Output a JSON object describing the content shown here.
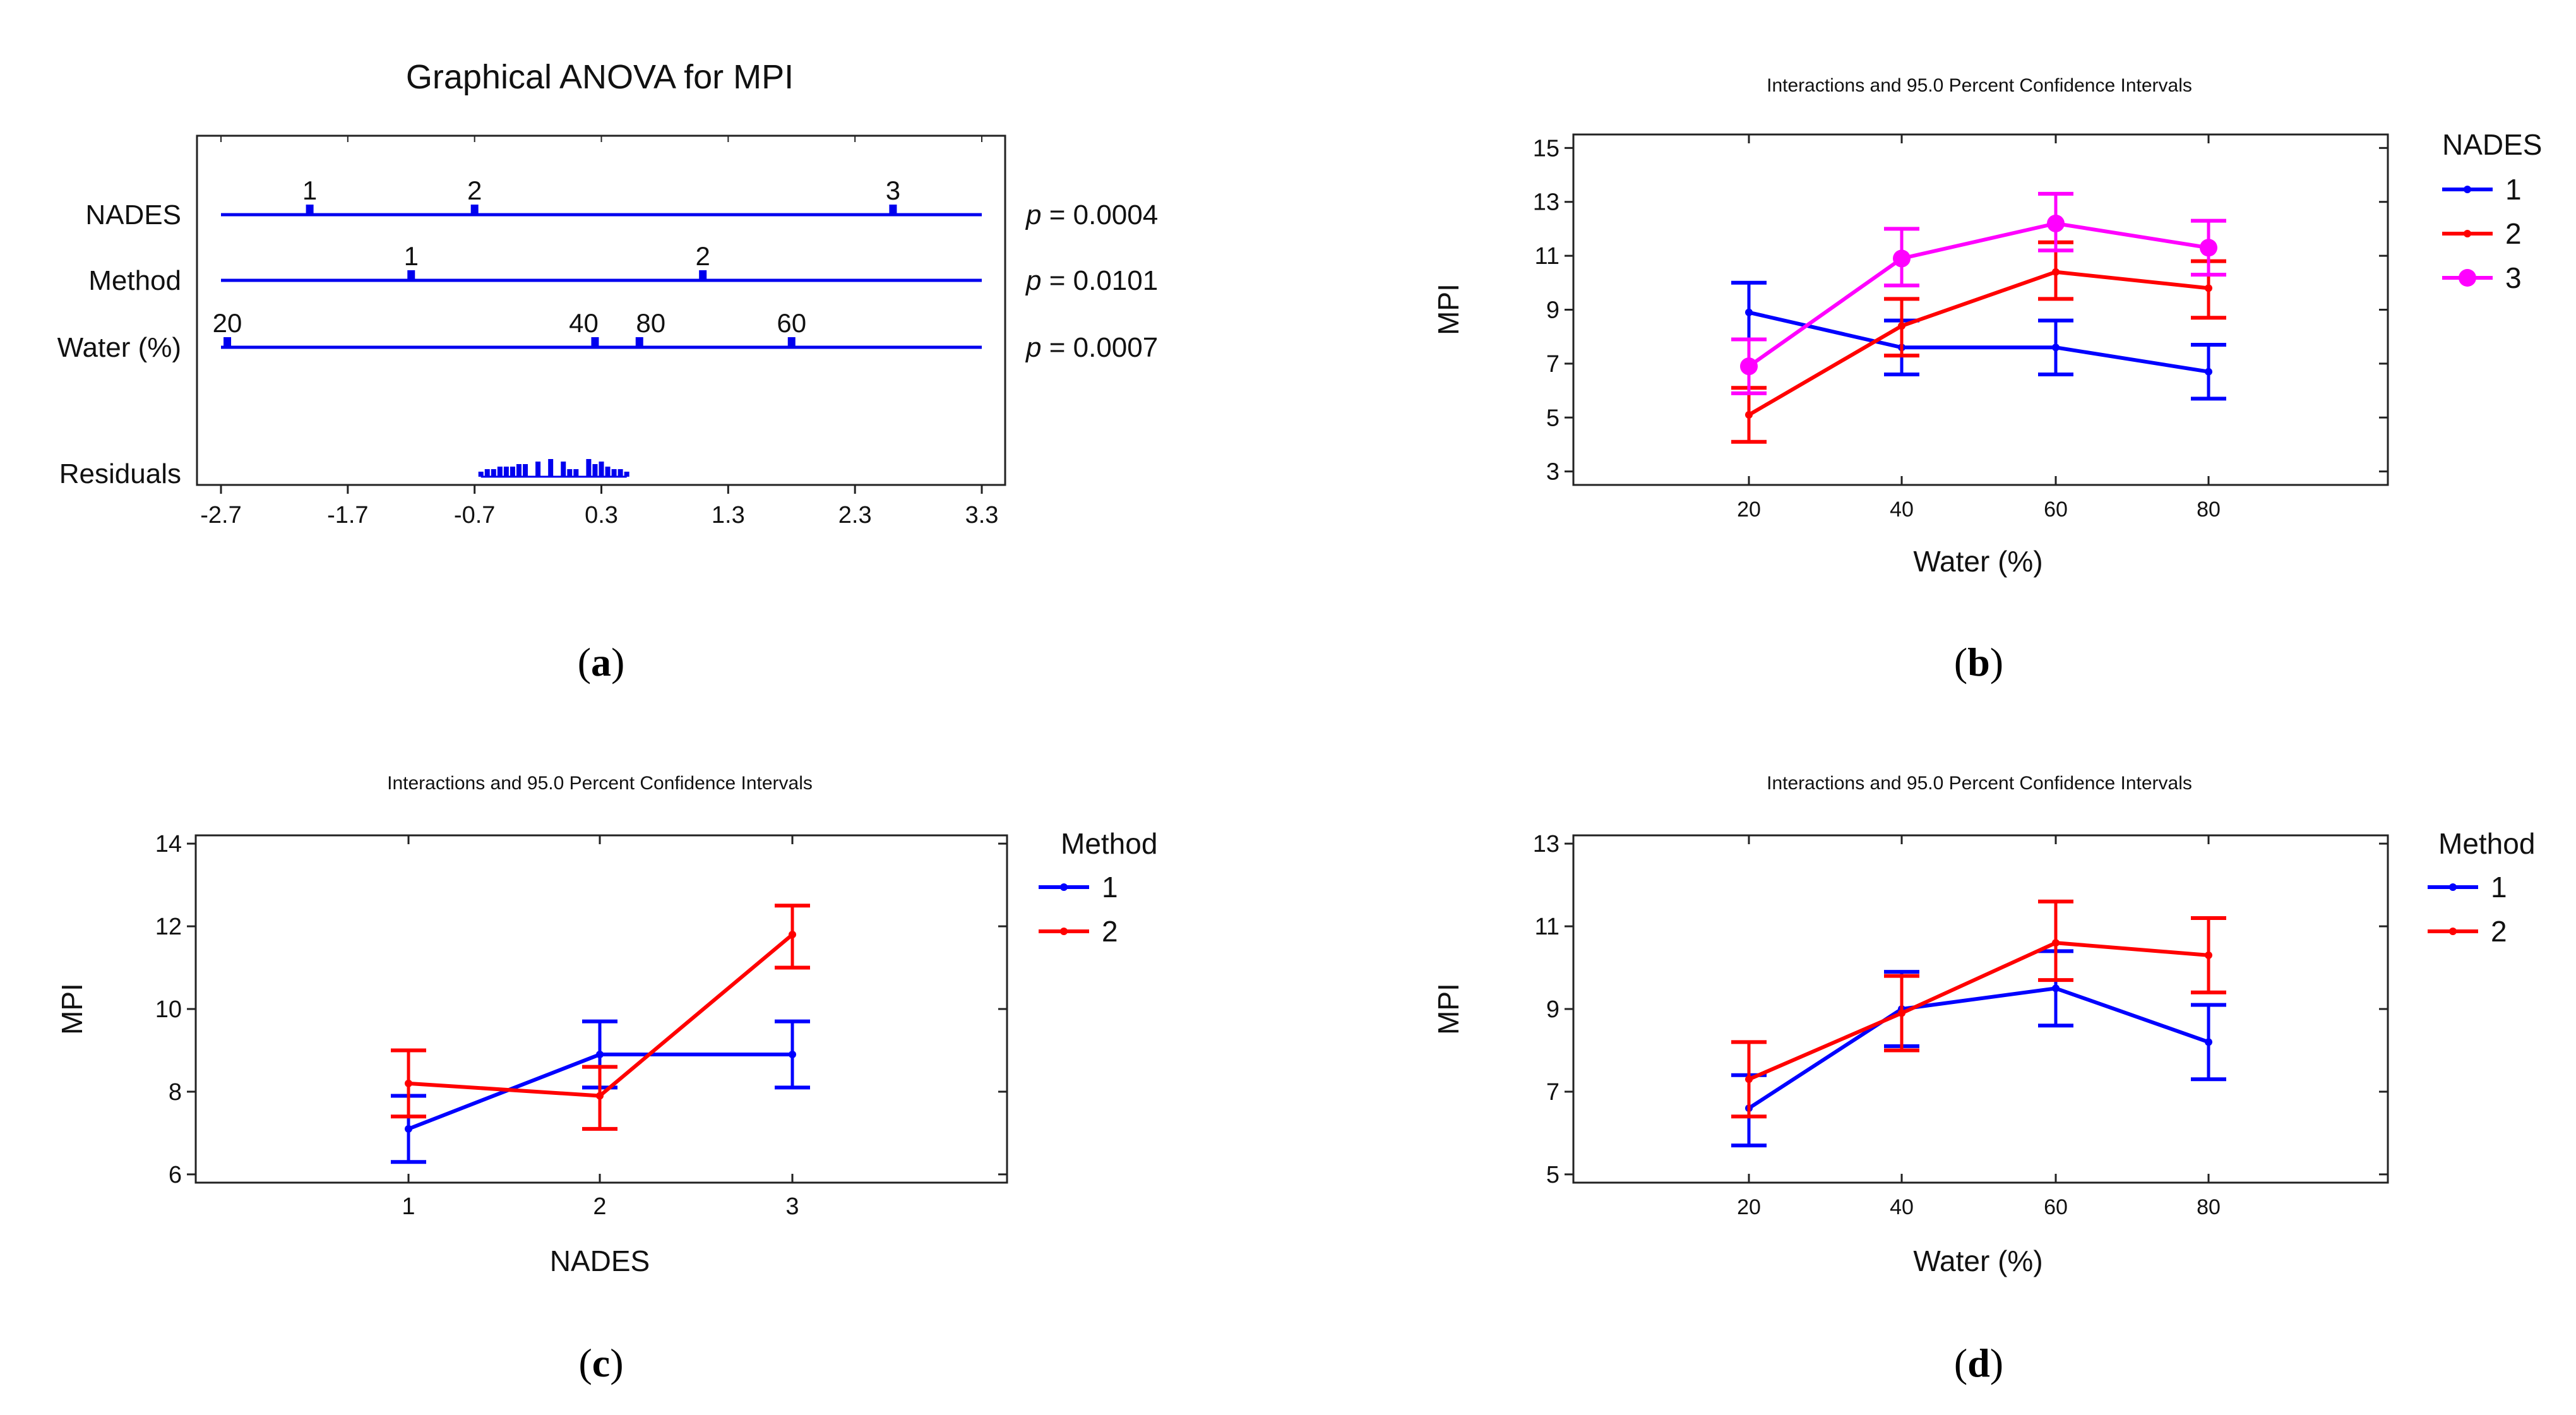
{
  "panels": {
    "a": {
      "title": "Graphical ANOVA for MPI",
      "caption": "a",
      "xticks": [
        "-2.7",
        "-1.7",
        "-0.7",
        "0.3",
        "1.3",
        "2.3",
        "3.3"
      ],
      "factors": [
        {
          "name": "NADES",
          "p_prefix": "p",
          "p_value": "= 0.0004",
          "levels": [
            {
              "label": "1",
              "effect": -2.0
            },
            {
              "label": "2",
              "effect": -0.7
            },
            {
              "label": "3",
              "effect": 2.6
            }
          ]
        },
        {
          "name": "Method",
          "p_prefix": "p",
          "p_value": "= 0.0101",
          "levels": [
            {
              "label": "1",
              "effect": -1.2
            },
            {
              "label": "2",
              "effect": 1.1
            }
          ]
        },
        {
          "name": "Water (%)",
          "p_prefix": "p",
          "p_value": "= 0.0007",
          "levels": [
            {
              "label": "20",
              "effect": -2.65
            },
            {
              "label": "40",
              "effect": 0.25
            },
            {
              "label": "80",
              "effect": 0.6
            },
            {
              "label": "60",
              "effect": 1.8
            }
          ]
        }
      ],
      "residuals_label": "Residuals"
    },
    "b": {
      "title": "Interactions and 95.0 Percent Confidence Intervals",
      "caption": "b",
      "xlabel": "Water (%)",
      "ylabel": "MPI",
      "legend_title": "NADES",
      "yticks": [
        "3",
        "5",
        "7",
        "9",
        "11",
        "13",
        "15"
      ],
      "xticks": [
        "20",
        "40",
        "60",
        "80"
      ]
    },
    "c": {
      "title": "Interactions and 95.0 Percent Confidence Intervals",
      "caption": "c",
      "xlabel": "NADES",
      "ylabel": "MPI",
      "legend_title": "Method",
      "yticks": [
        "6",
        "8",
        "10",
        "12",
        "14"
      ],
      "xticks": [
        "1",
        "2",
        "3"
      ]
    },
    "d": {
      "title": "Interactions and 95.0 Percent Confidence Intervals",
      "caption": "d",
      "xlabel": "Water (%)",
      "ylabel": "MPI",
      "legend_title": "Method",
      "yticks": [
        "5",
        "7",
        "9",
        "11",
        "13"
      ],
      "xticks": [
        "20",
        "40",
        "60",
        "80"
      ]
    }
  },
  "chart_data": [
    {
      "type": "scatter",
      "title": "Graphical ANOVA for MPI",
      "xlim": [
        -2.7,
        3.3
      ],
      "series": [
        {
          "name": "NADES",
          "x": [
            -2.0,
            -0.7,
            2.6
          ],
          "labels": [
            "1",
            "2",
            "3"
          ]
        },
        {
          "name": "Method",
          "x": [
            -1.2,
            1.1
          ],
          "labels": [
            "1",
            "2"
          ]
        },
        {
          "name": "Water (%)",
          "x": [
            -2.65,
            0.25,
            0.6,
            1.8
          ],
          "labels": [
            "20",
            "40",
            "80",
            "60"
          ]
        },
        {
          "name": "Residuals",
          "x": [
            -0.65,
            -0.6,
            -0.55,
            -0.5,
            -0.45,
            -0.4,
            -0.35,
            -0.3,
            -0.2,
            -0.1,
            0.0,
            0.05,
            0.1,
            0.2,
            0.25,
            0.3,
            0.35,
            0.4,
            0.45,
            0.5
          ],
          "heights": [
            2,
            3,
            3,
            4,
            4,
            4,
            5,
            5,
            6,
            7,
            6,
            3,
            3,
            7,
            5,
            6,
            4,
            3,
            3,
            2
          ]
        }
      ],
      "p_values": {
        "NADES": 0.0004,
        "Method": 0.0101,
        "Water (%)": 0.0007
      }
    },
    {
      "type": "line",
      "title": "Interactions and 95.0 Percent Confidence Intervals",
      "xlabel": "Water (%)",
      "ylabel": "MPI",
      "ylim": [
        2.5,
        15.5
      ],
      "categories": [
        "20",
        "40",
        "60",
        "80"
      ],
      "legend_title": "NADES",
      "legend": "right",
      "series": [
        {
          "name": "1",
          "color": "#0000ff",
          "values": [
            8.9,
            7.6,
            7.6,
            6.7
          ],
          "lower": [
            7.9,
            6.6,
            6.6,
            5.7
          ],
          "upper": [
            10.0,
            8.6,
            8.6,
            7.7
          ]
        },
        {
          "name": "2",
          "color": "#ff0000",
          "values": [
            5.1,
            8.4,
            10.4,
            9.8
          ],
          "lower": [
            4.1,
            7.3,
            9.4,
            8.7
          ],
          "upper": [
            6.1,
            9.4,
            11.5,
            10.8
          ]
        },
        {
          "name": "3",
          "color": "#ff00ff",
          "values": [
            6.9,
            10.9,
            12.2,
            11.3
          ],
          "lower": [
            5.9,
            9.9,
            11.2,
            10.3
          ],
          "upper": [
            7.9,
            12.0,
            13.3,
            12.3
          ]
        }
      ]
    },
    {
      "type": "line",
      "title": "Interactions and 95.0 Percent Confidence Intervals",
      "xlabel": "NADES",
      "ylabel": "MPI",
      "ylim": [
        5.8,
        14.2
      ],
      "categories": [
        "1",
        "2",
        "3"
      ],
      "legend_title": "Method",
      "legend": "right",
      "series": [
        {
          "name": "1",
          "color": "#0000ff",
          "values": [
            7.1,
            8.9,
            8.9
          ],
          "lower": [
            6.3,
            8.1,
            8.1
          ],
          "upper": [
            7.9,
            9.7,
            9.7
          ]
        },
        {
          "name": "2",
          "color": "#ff0000",
          "values": [
            8.2,
            7.9,
            11.8
          ],
          "lower": [
            7.4,
            7.1,
            11.0
          ],
          "upper": [
            9.0,
            8.6,
            12.5
          ]
        }
      ]
    },
    {
      "type": "line",
      "title": "Interactions and 95.0 Percent Confidence Intervals",
      "xlabel": "Water (%)",
      "ylabel": "MPI",
      "ylim": [
        4.8,
        13.2
      ],
      "categories": [
        "20",
        "40",
        "60",
        "80"
      ],
      "legend_title": "Method",
      "legend": "right",
      "series": [
        {
          "name": "1",
          "color": "#0000ff",
          "values": [
            6.6,
            9.0,
            9.5,
            8.2
          ],
          "lower": [
            5.7,
            8.1,
            8.6,
            7.3
          ],
          "upper": [
            7.4,
            9.9,
            10.4,
            9.1
          ]
        },
        {
          "name": "2",
          "color": "#ff0000",
          "values": [
            7.3,
            8.9,
            10.6,
            10.3
          ],
          "lower": [
            6.4,
            8.0,
            9.7,
            9.4
          ],
          "upper": [
            8.2,
            9.8,
            11.6,
            11.2
          ]
        }
      ]
    }
  ]
}
